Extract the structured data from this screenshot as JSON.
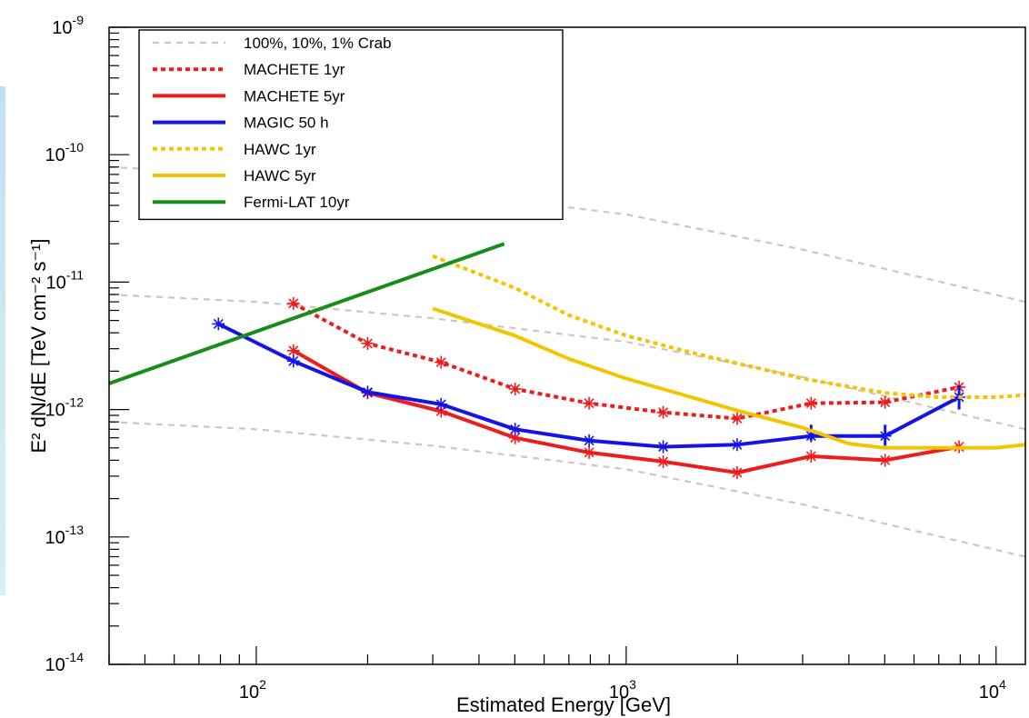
{
  "chart_data": {
    "type": "line",
    "title": "",
    "xlabel": "Estimated Energy [GeV]",
    "ylabel": "E² dN/dE [TeV cm⁻² s⁻¹]",
    "x_scale": "log",
    "y_scale": "log",
    "xlim": [
      40,
      12000
    ],
    "ylim": [
      1e-14,
      1e-09
    ],
    "grid": false,
    "legend_position": "top-left",
    "x_ticks": [
      {
        "value": 100,
        "base": "10",
        "exp": "2"
      },
      {
        "value": 1000,
        "base": "10",
        "exp": "3"
      },
      {
        "value": 10000,
        "base": "10",
        "exp": "4"
      }
    ],
    "y_ticks": [
      {
        "value": 1e-14,
        "base": "10",
        "exp": "-14"
      },
      {
        "value": 1e-13,
        "base": "10",
        "exp": "-13"
      },
      {
        "value": 1e-12,
        "base": "10",
        "exp": "-12"
      },
      {
        "value": 1e-11,
        "base": "10",
        "exp": "-11"
      },
      {
        "value": 1e-10,
        "base": "10",
        "exp": "-10"
      },
      {
        "value": 1e-09,
        "base": "10",
        "exp": "-9"
      }
    ],
    "series": [
      {
        "name": "100%, 10%, 1% Crab",
        "color": "#c8c8c8",
        "style": "dashed",
        "legend": true,
        "x": [
          40,
          100,
          300,
          1000,
          3000,
          12000
        ],
        "y": [
          8e-11,
          7e-11,
          5.2e-11,
          3.4e-11,
          1.8e-11,
          7e-12
        ]
      },
      {
        "name": "",
        "color": "#c8c8c8",
        "style": "dashed",
        "legend": false,
        "x": [
          40,
          100,
          300,
          1000,
          3000,
          12000
        ],
        "y": [
          8e-12,
          7e-12,
          5.2e-12,
          3.4e-12,
          1.8e-12,
          7e-13
        ]
      },
      {
        "name": "",
        "color": "#c8c8c8",
        "style": "dashed",
        "legend": false,
        "x": [
          40,
          100,
          300,
          1000,
          3000,
          12000
        ],
        "y": [
          8e-13,
          7e-13,
          5.2e-13,
          3.4e-13,
          1.8e-13,
          7e-14
        ]
      },
      {
        "name": "MACHETE 1yr",
        "color": "#ee1c1c",
        "style": "dotted",
        "legend": true,
        "marker": "star",
        "x": [
          126,
          200,
          316,
          501,
          794,
          1259,
          1995,
          3162,
          5012,
          7943
        ],
        "y": [
          6.8e-12,
          3.3e-12,
          2.35e-12,
          1.45e-12,
          1.12e-12,
          9.5e-13,
          8.5e-13,
          1.12e-12,
          1.14e-12,
          1.5e-12
        ]
      },
      {
        "name": "MACHETE 5yr",
        "color": "#ee1c1c",
        "style": "solid",
        "legend": true,
        "marker": "star",
        "x": [
          126,
          200,
          316,
          501,
          794,
          1259,
          1995,
          3162,
          5012,
          7943
        ],
        "y": [
          2.9e-12,
          1.35e-12,
          9.7e-13,
          6e-13,
          4.6e-13,
          3.9e-13,
          3.2e-13,
          4.3e-13,
          4e-13,
          5.1e-13
        ]
      },
      {
        "name": "MAGIC 50 h",
        "color": "#1414e6",
        "style": "solid",
        "legend": true,
        "marker": "star",
        "x": [
          79,
          126,
          200,
          316,
          501,
          794,
          1259,
          1995,
          3162,
          5012,
          7943
        ],
        "y": [
          4.7e-12,
          2.4e-12,
          1.37e-12,
          1.1e-12,
          7e-13,
          5.7e-13,
          5.1e-13,
          5.3e-13,
          6.2e-13,
          6.2e-13,
          1.25e-12
        ],
        "err_lo": [
          0,
          0,
          0,
          0,
          0,
          0,
          0,
          0,
          5e-14,
          1e-13,
          2.5e-13
        ],
        "err_hi": [
          0,
          0,
          0,
          0,
          0,
          0,
          0,
          0,
          1.4e-13,
          1.4e-13,
          3e-13
        ]
      },
      {
        "name": "HAWC 1yr",
        "color": "#f5c400",
        "style": "dotted",
        "legend": true,
        "x": [
          300,
          500,
          700,
          1000,
          1500,
          2000,
          3000,
          5000,
          7000,
          10000,
          12000
        ],
        "y": [
          1.6e-11,
          9e-12,
          5.5e-12,
          3.8e-12,
          2.8e-12,
          2.3e-12,
          1.75e-12,
          1.35e-12,
          1.25e-12,
          1.25e-12,
          1.3e-12
        ]
      },
      {
        "name": "HAWC 5yr",
        "color": "#f5c400",
        "style": "solid",
        "legend": true,
        "x": [
          300,
          500,
          700,
          1000,
          1500,
          2000,
          3000,
          4000,
          5000,
          7000,
          10000,
          12000
        ],
        "y": [
          6.2e-12,
          3.8e-12,
          2.5e-12,
          1.75e-12,
          1.25e-12,
          9.8e-13,
          7.2e-13,
          5.4e-13,
          5e-13,
          5e-13,
          5e-13,
          5.3e-13
        ]
      },
      {
        "name": "Fermi-LAT 10yr",
        "color": "#1a8c1a",
        "style": "solid",
        "legend": true,
        "x": [
          40,
          468
        ],
        "y": [
          1.6e-12,
          2e-11
        ]
      }
    ]
  }
}
